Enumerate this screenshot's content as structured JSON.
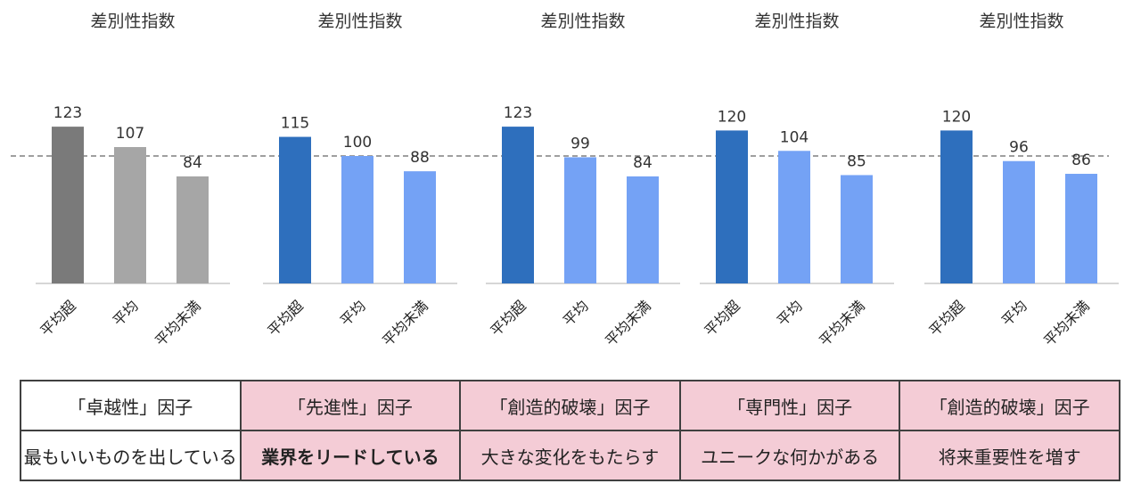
{
  "chart_data": [
    {
      "type": "bar",
      "title": "差別性指数",
      "categories": [
        "平均超",
        "平均",
        "平均未満"
      ],
      "values": [
        123,
        107,
        84
      ],
      "colors": [
        "#7a7a7a",
        "#a6a6a6",
        "#a6a6a6"
      ],
      "reference_line": 100
    },
    {
      "type": "bar",
      "title": "差別性指数",
      "categories": [
        "平均超",
        "平均",
        "平均未満"
      ],
      "values": [
        115,
        100,
        88
      ],
      "colors": [
        "#2e6fbd",
        "#74a2f5",
        "#74a2f5"
      ],
      "reference_line": 100
    },
    {
      "type": "bar",
      "title": "差別性指数",
      "categories": [
        "平均超",
        "平均",
        "平均未満"
      ],
      "values": [
        123,
        99,
        84
      ],
      "colors": [
        "#2e6fbd",
        "#74a2f5",
        "#74a2f5"
      ],
      "reference_line": 100
    },
    {
      "type": "bar",
      "title": "差別性指数",
      "categories": [
        "平均超",
        "平均",
        "平均未満"
      ],
      "values": [
        120,
        104,
        85
      ],
      "colors": [
        "#2e6fbd",
        "#74a2f5",
        "#74a2f5"
      ],
      "reference_line": 100
    },
    {
      "type": "bar",
      "title": "差別性指数",
      "categories": [
        "平均超",
        "平均",
        "平均未満"
      ],
      "values": [
        120,
        96,
        86
      ],
      "colors": [
        "#2e6fbd",
        "#74a2f5",
        "#74a2f5"
      ],
      "reference_line": 100
    }
  ],
  "factors": [
    {
      "title": "「卓越性」因子",
      "description": "最もいいものを出している"
    },
    {
      "title": "「先進性」因子",
      "description": "業界をリードしている"
    },
    {
      "title": "「創造的破壊」因子",
      "description": "大きな変化をもたらす"
    },
    {
      "title": "「専門性」因子",
      "description": "ユニークな何かがある"
    },
    {
      "title": "「創造的破壊」因子",
      "description": "将来重要性を増す"
    }
  ]
}
